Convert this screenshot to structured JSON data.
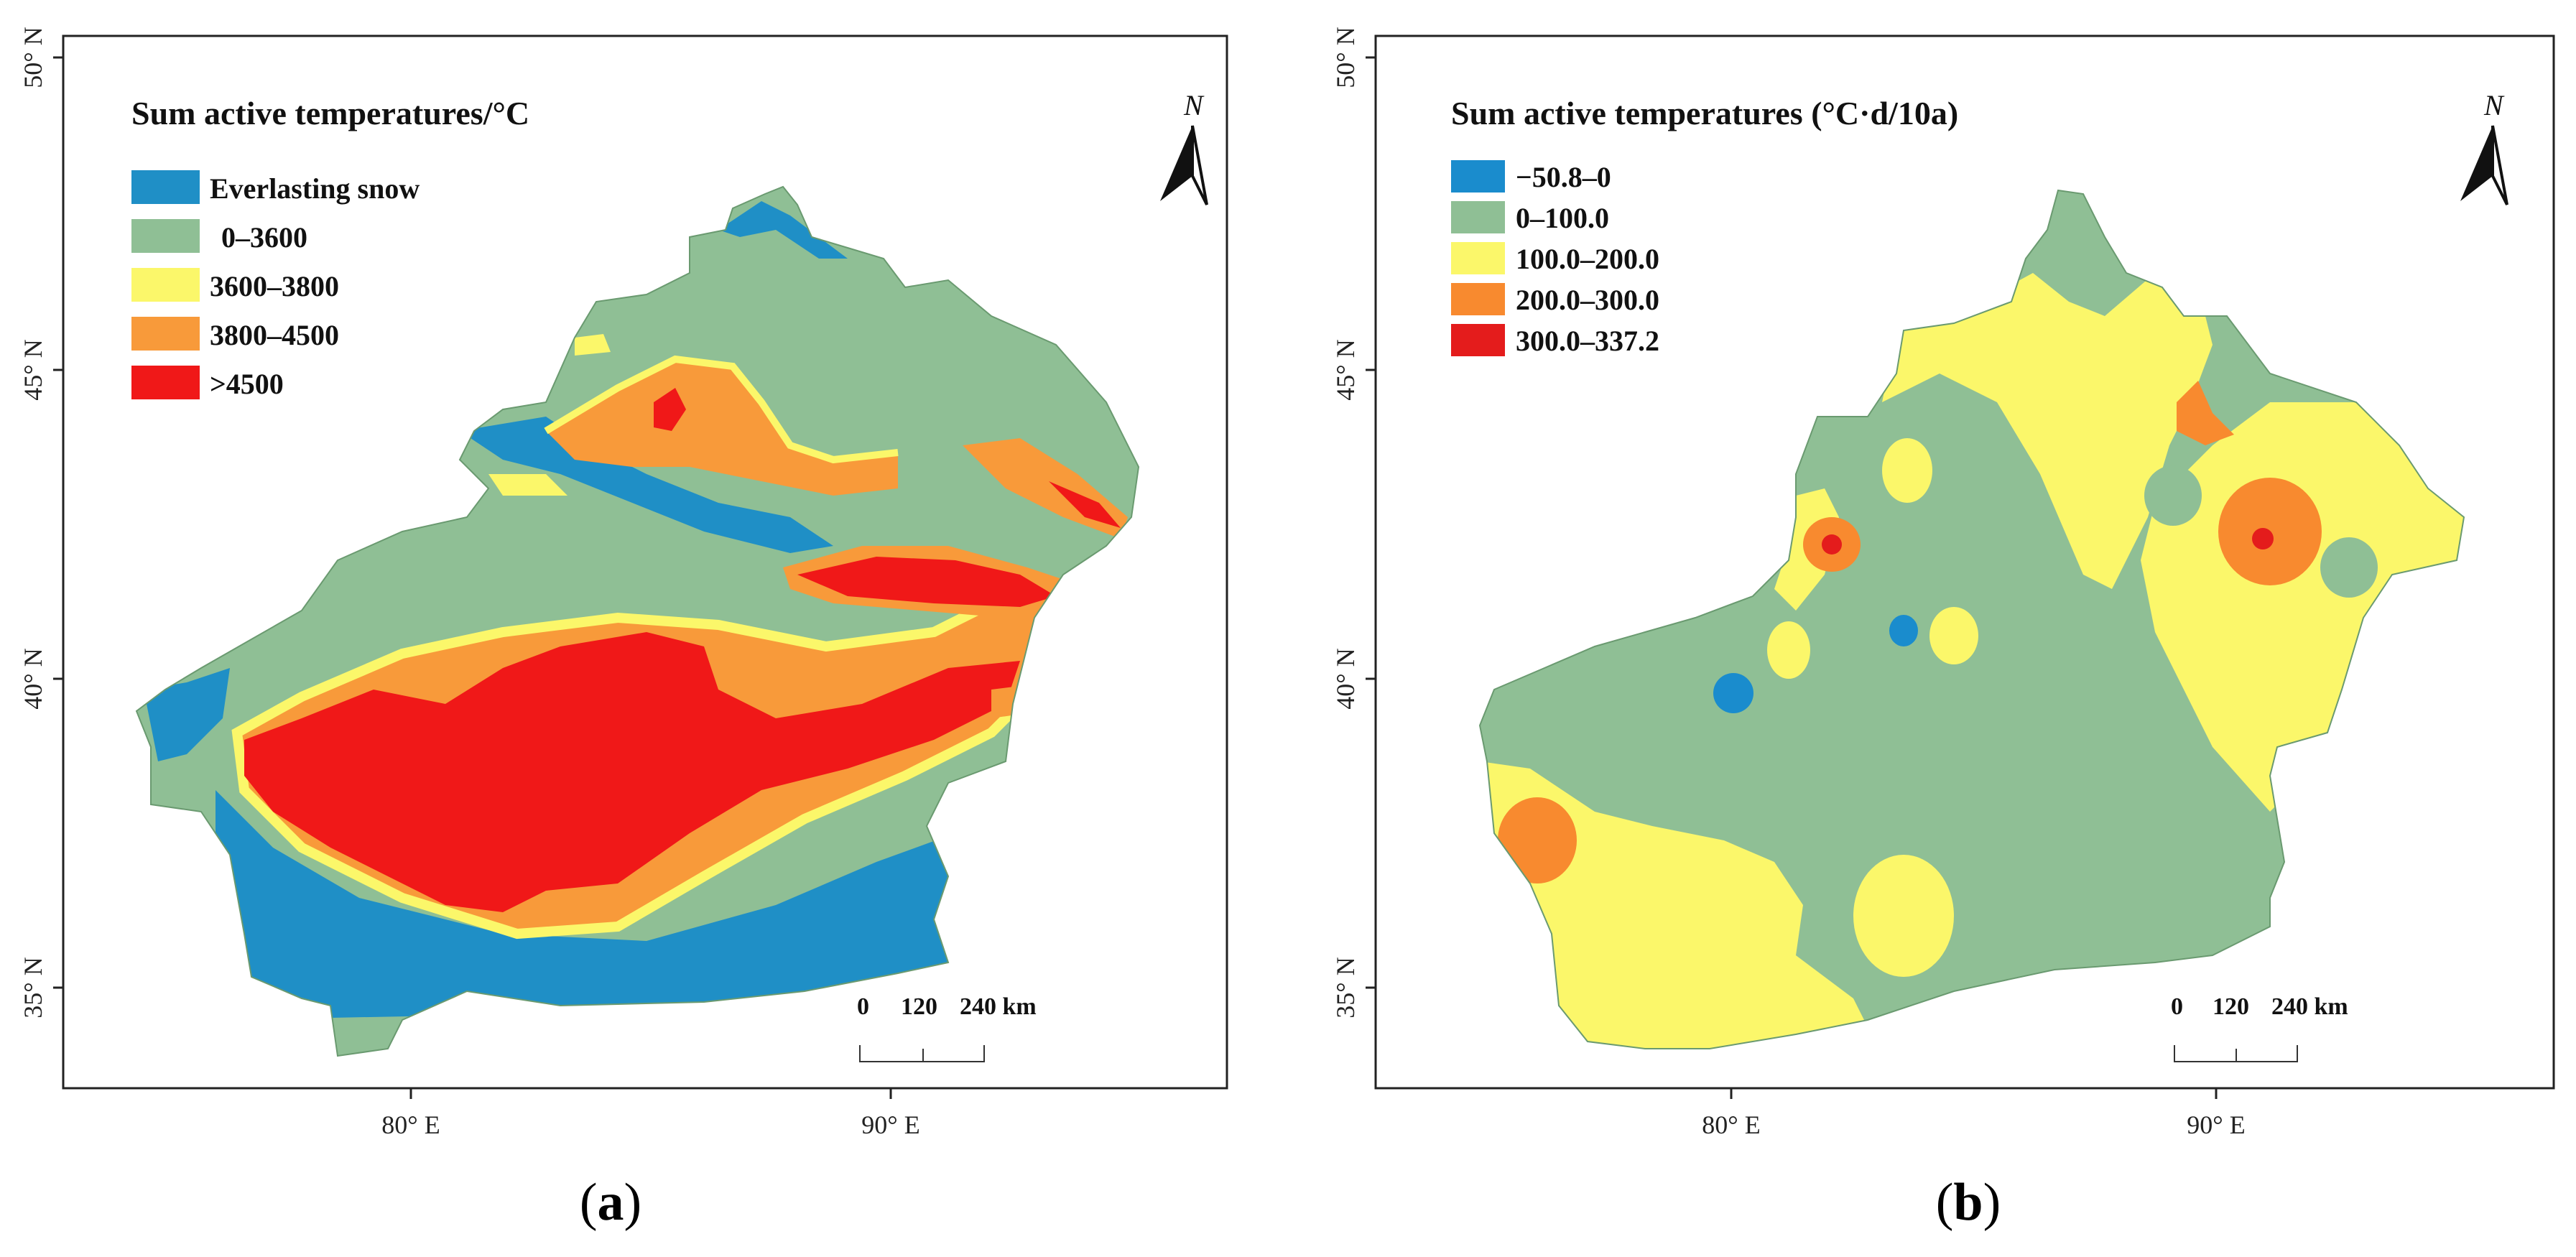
{
  "colors": {
    "snow": "#1f8fc6",
    "green": "#8fbf95",
    "yellow": "#fbf76a",
    "orange": "#f89a3a",
    "red": "#f01818",
    "b_blue": "#1a8ccd",
    "b_green": "#8fbf95",
    "b_yellow": "#fbf76a",
    "b_orange": "#f88a2f",
    "b_red": "#e41c1c"
  },
  "ticks": {
    "lat": [
      "50° N",
      "45° N",
      "40° N",
      "35° N"
    ],
    "lon": [
      "80° E",
      "90° E"
    ]
  },
  "north_label": "N",
  "maps": [
    {
      "caption": "a",
      "title": "Sum active temperatures/°C",
      "legend": [
        {
          "label": "Everlasting snow",
          "color": "#1f8fc6"
        },
        {
          "label": "0–3600",
          "color": "#8fbf95"
        },
        {
          "label": "3600–3800",
          "color": "#fbf76a"
        },
        {
          "label": "3800–4500",
          "color": "#f89a3a"
        },
        {
          "label": ">4500",
          "color": "#f01818"
        }
      ],
      "scale": {
        "labels": [
          "0",
          "120",
          "240 km"
        ]
      }
    },
    {
      "caption": "b",
      "title": "Sum active temperatures (°C·d/10a)",
      "legend": [
        {
          "label": "−50.8–0",
          "color": "#1a8ccd"
        },
        {
          "label": "0–100.0",
          "color": "#8fbf95"
        },
        {
          "label": "100.0–200.0",
          "color": "#fbf76a"
        },
        {
          "label": "200.0–300.0",
          "color": "#f88a2f"
        },
        {
          "label": "300.0–337.2",
          "color": "#e41c1c"
        }
      ],
      "scale": {
        "labels": [
          "0",
          "120",
          "240 km"
        ]
      }
    }
  ]
}
